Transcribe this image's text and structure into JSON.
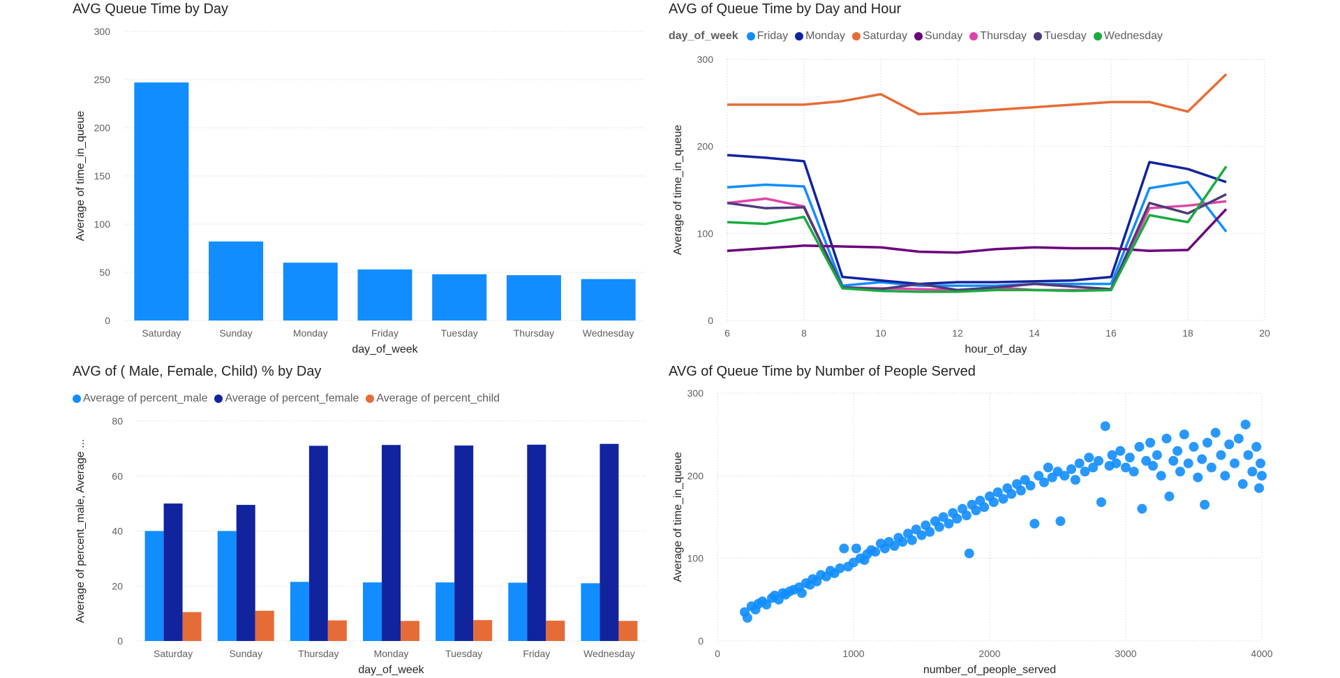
{
  "chart_data": [
    {
      "type": "bar",
      "title": "AVG Queue Time by Day",
      "xlabel": "day_of_week",
      "ylabel": "Average of time_in_queue",
      "ylim": [
        0,
        300
      ],
      "yticks": [
        0,
        50,
        100,
        150,
        200,
        250,
        300
      ],
      "grid": true,
      "color": "#118DFF",
      "categories": [
        "Saturday",
        "Sunday",
        "Monday",
        "Friday",
        "Tuesday",
        "Thursday",
        "Wednesday"
      ],
      "values": [
        247,
        82,
        60,
        53,
        48,
        47,
        43
      ]
    },
    {
      "type": "line",
      "title": "AVG of Queue Time by Day and Hour",
      "legend_title": "day_of_week",
      "legend_position": "top-left",
      "xlabel": "hour_of_day",
      "ylabel": "Average of time_in_queue",
      "xlim": [
        6,
        20
      ],
      "ylim": [
        0,
        300
      ],
      "xticks": [
        6,
        8,
        10,
        12,
        14,
        16,
        18,
        20
      ],
      "yticks": [
        0,
        100,
        200,
        300
      ],
      "grid": true,
      "x": [
        6,
        7,
        8,
        9,
        10,
        11,
        12,
        13,
        14,
        15,
        16,
        17,
        18,
        19
      ],
      "series": [
        {
          "name": "Friday",
          "color": "#118DFF",
          "values": [
            153,
            156,
            154,
            40,
            44,
            40,
            40,
            40,
            42,
            42,
            42,
            152,
            159,
            102
          ]
        },
        {
          "name": "Monday",
          "color": "#12239E",
          "values": [
            190,
            187,
            183,
            50,
            46,
            42,
            44,
            44,
            45,
            46,
            50,
            182,
            174,
            159
          ]
        },
        {
          "name": "Saturday",
          "color": "#E66C37",
          "values": [
            248,
            248,
            248,
            252,
            260,
            237,
            239,
            242,
            245,
            248,
            251,
            251,
            240,
            283
          ]
        },
        {
          "name": "Sunday",
          "color": "#6B007B",
          "values": [
            80,
            83,
            86,
            85,
            84,
            79,
            78,
            82,
            84,
            83,
            83,
            80,
            81,
            128
          ]
        },
        {
          "name": "Thursday",
          "color": "#E044A7",
          "values": [
            135,
            140,
            131,
            38,
            37,
            36,
            35,
            38,
            35,
            35,
            35,
            129,
            132,
            137
          ]
        },
        {
          "name": "Tuesday",
          "color": "#4E3A7A",
          "values": [
            135,
            129,
            130,
            38,
            36,
            42,
            35,
            38,
            42,
            39,
            36,
            135,
            123,
            145
          ]
        },
        {
          "name": "Wednesday",
          "color": "#1AAB40",
          "values": [
            113,
            111,
            119,
            37,
            34,
            33,
            33,
            35,
            35,
            34,
            35,
            121,
            113,
            177
          ]
        }
      ]
    },
    {
      "type": "bar",
      "title": "AVG of ( Male, Female, Child) % by Day",
      "legend_position": "top-left",
      "xlabel": "day_of_week",
      "ylabel": "Average of percent_male, Average ...",
      "ylim": [
        0,
        80
      ],
      "yticks": [
        0,
        20,
        40,
        60,
        80
      ],
      "grid": true,
      "categories": [
        "Saturday",
        "Sunday",
        "Thursday",
        "Monday",
        "Tuesday",
        "Friday",
        "Wednesday"
      ],
      "series": [
        {
          "name": "Average of percent_male",
          "color": "#118DFF",
          "values": [
            40,
            40,
            21.5,
            21.3,
            21.3,
            21.2,
            21
          ]
        },
        {
          "name": "Average of percent_female",
          "color": "#12239E",
          "values": [
            50,
            49.5,
            71,
            71.3,
            71.1,
            71.4,
            71.7
          ]
        },
        {
          "name": "Average of percent_child",
          "color": "#E66C37",
          "values": [
            10.5,
            11,
            7.5,
            7.3,
            7.6,
            7.4,
            7.3
          ]
        }
      ]
    },
    {
      "type": "scatter",
      "title": "AVG of Queue Time by Number of People Served",
      "xlabel": "number_of_people_served",
      "ylabel": "Average of time_in_queue",
      "xlim": [
        0,
        4000
      ],
      "ylim": [
        0,
        300
      ],
      "xticks": [
        0,
        1000,
        2000,
        3000,
        4000
      ],
      "yticks": [
        0,
        100,
        200,
        300
      ],
      "grid": true,
      "color": "#118DFF",
      "points": [
        [
          200,
          35
        ],
        [
          220,
          28
        ],
        [
          250,
          42
        ],
        [
          280,
          38
        ],
        [
          300,
          45
        ],
        [
          330,
          48
        ],
        [
          360,
          44
        ],
        [
          400,
          52
        ],
        [
          420,
          55
        ],
        [
          450,
          50
        ],
        [
          480,
          58
        ],
        [
          500,
          56
        ],
        [
          530,
          60
        ],
        [
          560,
          62
        ],
        [
          600,
          65
        ],
        [
          620,
          58
        ],
        [
          650,
          70
        ],
        [
          680,
          68
        ],
        [
          700,
          75
        ],
        [
          730,
          72
        ],
        [
          760,
          80
        ],
        [
          800,
          78
        ],
        [
          830,
          85
        ],
        [
          860,
          82
        ],
        [
          900,
          88
        ],
        [
          930,
          112
        ],
        [
          960,
          90
        ],
        [
          1000,
          95
        ],
        [
          1020,
          112
        ],
        [
          1050,
          100
        ],
        [
          1080,
          98
        ],
        [
          1100,
          105
        ],
        [
          1130,
          110
        ],
        [
          1160,
          108
        ],
        [
          1200,
          118
        ],
        [
          1230,
          112
        ],
        [
          1260,
          120
        ],
        [
          1300,
          115
        ],
        [
          1330,
          125
        ],
        [
          1360,
          120
        ],
        [
          1400,
          130
        ],
        [
          1430,
          122
        ],
        [
          1460,
          135
        ],
        [
          1500,
          128
        ],
        [
          1530,
          140
        ],
        [
          1560,
          132
        ],
        [
          1600,
          145
        ],
        [
          1630,
          138
        ],
        [
          1660,
          150
        ],
        [
          1700,
          142
        ],
        [
          1730,
          155
        ],
        [
          1760,
          148
        ],
        [
          1800,
          160
        ],
        [
          1830,
          152
        ],
        [
          1850,
          106
        ],
        [
          1870,
          165
        ],
        [
          1900,
          158
        ],
        [
          1930,
          170
        ],
        [
          1960,
          162
        ],
        [
          2000,
          175
        ],
        [
          2030,
          168
        ],
        [
          2060,
          180
        ],
        [
          2100,
          172
        ],
        [
          2130,
          185
        ],
        [
          2160,
          178
        ],
        [
          2200,
          190
        ],
        [
          2230,
          182
        ],
        [
          2260,
          195
        ],
        [
          2300,
          188
        ],
        [
          2330,
          142
        ],
        [
          2360,
          200
        ],
        [
          2400,
          192
        ],
        [
          2430,
          210
        ],
        [
          2460,
          198
        ],
        [
          2500,
          205
        ],
        [
          2520,
          145
        ],
        [
          2550,
          200
        ],
        [
          2600,
          208
        ],
        [
          2630,
          195
        ],
        [
          2660,
          215
        ],
        [
          2700,
          205
        ],
        [
          2730,
          222
        ],
        [
          2760,
          210
        ],
        [
          2800,
          218
        ],
        [
          2820,
          168
        ],
        [
          2850,
          260
        ],
        [
          2880,
          212
        ],
        [
          2900,
          225
        ],
        [
          2930,
          215
        ],
        [
          2960,
          230
        ],
        [
          3000,
          210
        ],
        [
          3030,
          222
        ],
        [
          3060,
          205
        ],
        [
          3100,
          235
        ],
        [
          3120,
          160
        ],
        [
          3150,
          218
        ],
        [
          3180,
          240
        ],
        [
          3200,
          212
        ],
        [
          3230,
          225
        ],
        [
          3260,
          200
        ],
        [
          3300,
          245
        ],
        [
          3320,
          175
        ],
        [
          3350,
          218
        ],
        [
          3380,
          230
        ],
        [
          3400,
          205
        ],
        [
          3430,
          250
        ],
        [
          3460,
          215
        ],
        [
          3500,
          235
        ],
        [
          3530,
          198
        ],
        [
          3560,
          220
        ],
        [
          3580,
          165
        ],
        [
          3600,
          240
        ],
        [
          3630,
          210
        ],
        [
          3660,
          252
        ],
        [
          3700,
          225
        ],
        [
          3730,
          200
        ],
        [
          3760,
          238
        ],
        [
          3800,
          215
        ],
        [
          3830,
          245
        ],
        [
          3860,
          190
        ],
        [
          3880,
          262
        ],
        [
          3900,
          225
        ],
        [
          3930,
          205
        ],
        [
          3960,
          235
        ],
        [
          3980,
          185
        ],
        [
          3990,
          215
        ],
        [
          4000,
          200
        ]
      ]
    }
  ]
}
